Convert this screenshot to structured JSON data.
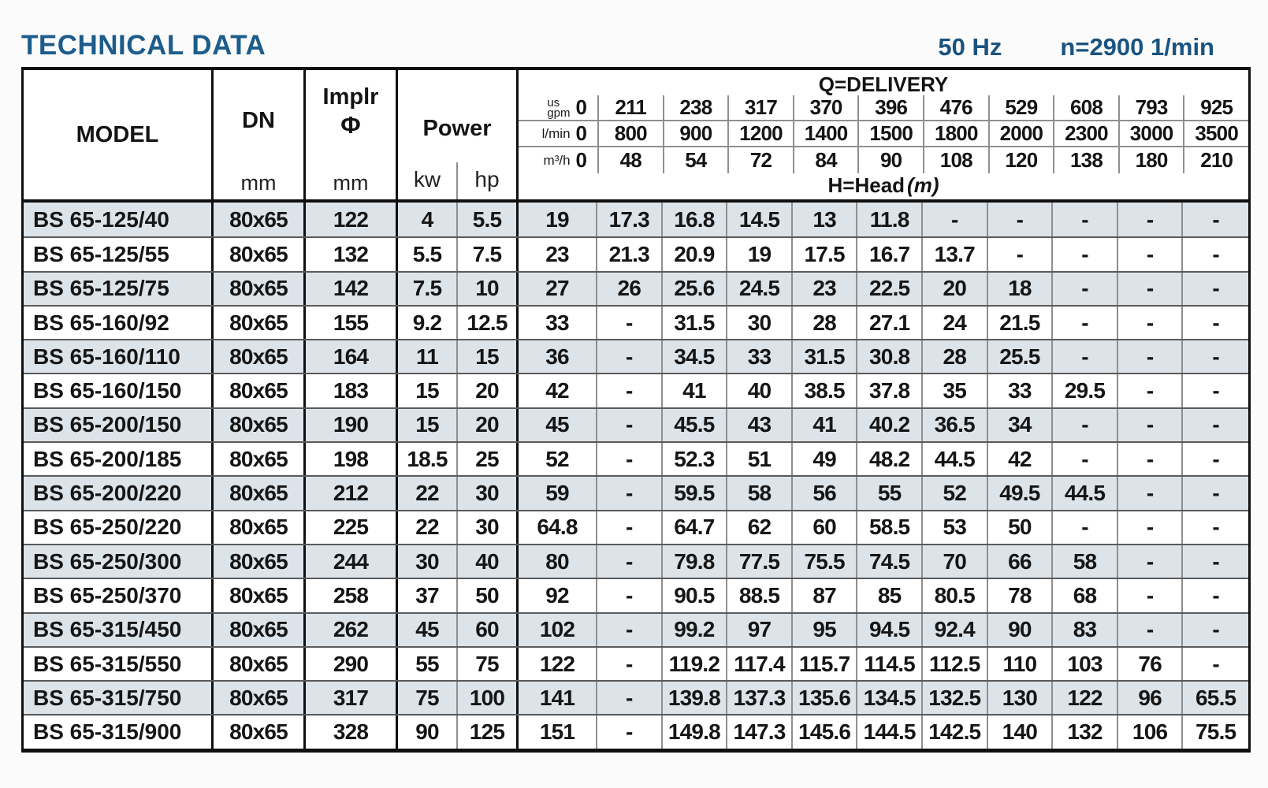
{
  "page": {
    "title": "TECHNICAL DATA",
    "frequency": "50 Hz",
    "speed": "n=2900 1/min"
  },
  "colors": {
    "title_blue": "#1d5c8b",
    "spec_blue": "#1a5380",
    "row_shade": "#dce3e9",
    "border_dark": "#101010",
    "line_gray": "#8f8f8f"
  },
  "table": {
    "headers": {
      "model": "MODEL",
      "dn": "DN",
      "dn_unit": "mm",
      "implr_line1": "Implr",
      "implr_symbol": "Φ",
      "implr_unit": "mm",
      "power": "Power",
      "power_kw": "kw",
      "power_hp": "hp",
      "delivery_title": "Q=DELIVERY",
      "head_title": "H=Head",
      "head_unit": "(m)",
      "unit_rows": [
        {
          "unit_top": "us",
          "unit": "gpm",
          "zero": "0",
          "values": [
            "211",
            "238",
            "317",
            "370",
            "396",
            "476",
            "529",
            "608",
            "793",
            "925"
          ]
        },
        {
          "unit": "l/min",
          "zero": "0",
          "values": [
            "800",
            "900",
            "1200",
            "1400",
            "1500",
            "1800",
            "2000",
            "2300",
            "3000",
            "3500"
          ]
        },
        {
          "unit": "m³/h",
          "zero": "0",
          "values": [
            "48",
            "54",
            "72",
            "84",
            "90",
            "108",
            "120",
            "138",
            "180",
            "210"
          ]
        }
      ]
    },
    "rows": [
      {
        "model": "BS 65-125/40",
        "dn": "80x65",
        "implr": "122",
        "kw": "4",
        "hp": "5.5",
        "head": [
          "19",
          "17.3",
          "16.8",
          "14.5",
          "13",
          "11.8",
          "-",
          "-",
          "-",
          "-",
          "-"
        ]
      },
      {
        "model": "BS 65-125/55",
        "dn": "80x65",
        "implr": "132",
        "kw": "5.5",
        "hp": "7.5",
        "head": [
          "23",
          "21.3",
          "20.9",
          "19",
          "17.5",
          "16.7",
          "13.7",
          "-",
          "-",
          "-",
          "-"
        ]
      },
      {
        "model": "BS 65-125/75",
        "dn": "80x65",
        "implr": "142",
        "kw": "7.5",
        "hp": "10",
        "head": [
          "27",
          "26",
          "25.6",
          "24.5",
          "23",
          "22.5",
          "20",
          "18",
          "-",
          "-",
          "-"
        ]
      },
      {
        "model": "BS 65-160/92",
        "dn": "80x65",
        "implr": "155",
        "kw": "9.2",
        "hp": "12.5",
        "head": [
          "33",
          "-",
          "31.5",
          "30",
          "28",
          "27.1",
          "24",
          "21.5",
          "-",
          "-",
          "-"
        ]
      },
      {
        "model": "BS 65-160/110",
        "dn": "80x65",
        "implr": "164",
        "kw": "11",
        "hp": "15",
        "head": [
          "36",
          "-",
          "34.5",
          "33",
          "31.5",
          "30.8",
          "28",
          "25.5",
          "-",
          "-",
          "-"
        ]
      },
      {
        "model": "BS 65-160/150",
        "dn": "80x65",
        "implr": "183",
        "kw": "15",
        "hp": "20",
        "head": [
          "42",
          "-",
          "41",
          "40",
          "38.5",
          "37.8",
          "35",
          "33",
          "29.5",
          "-",
          "-"
        ]
      },
      {
        "model": "BS 65-200/150",
        "dn": "80x65",
        "implr": "190",
        "kw": "15",
        "hp": "20",
        "head": [
          "45",
          "-",
          "45.5",
          "43",
          "41",
          "40.2",
          "36.5",
          "34",
          "-",
          "-",
          "-"
        ]
      },
      {
        "model": "BS 65-200/185",
        "dn": "80x65",
        "implr": "198",
        "kw": "18.5",
        "hp": "25",
        "head": [
          "52",
          "-",
          "52.3",
          "51",
          "49",
          "48.2",
          "44.5",
          "42",
          "-",
          "-",
          "-"
        ]
      },
      {
        "model": "BS 65-200/220",
        "dn": "80x65",
        "implr": "212",
        "kw": "22",
        "hp": "30",
        "head": [
          "59",
          "-",
          "59.5",
          "58",
          "56",
          "55",
          "52",
          "49.5",
          "44.5",
          "-",
          "-"
        ]
      },
      {
        "model": "BS 65-250/220",
        "dn": "80x65",
        "implr": "225",
        "kw": "22",
        "hp": "30",
        "head": [
          "64.8",
          "-",
          "64.7",
          "62",
          "60",
          "58.5",
          "53",
          "50",
          "-",
          "-",
          "-"
        ]
      },
      {
        "model": "BS 65-250/300",
        "dn": "80x65",
        "implr": "244",
        "kw": "30",
        "hp": "40",
        "head": [
          "80",
          "-",
          "79.8",
          "77.5",
          "75.5",
          "74.5",
          "70",
          "66",
          "58",
          "-",
          "-"
        ]
      },
      {
        "model": "BS 65-250/370",
        "dn": "80x65",
        "implr": "258",
        "kw": "37",
        "hp": "50",
        "head": [
          "92",
          "-",
          "90.5",
          "88.5",
          "87",
          "85",
          "80.5",
          "78",
          "68",
          "-",
          "-"
        ]
      },
      {
        "model": "BS 65-315/450",
        "dn": "80x65",
        "implr": "262",
        "kw": "45",
        "hp": "60",
        "head": [
          "102",
          "-",
          "99.2",
          "97",
          "95",
          "94.5",
          "92.4",
          "90",
          "83",
          "-",
          "-"
        ]
      },
      {
        "model": "BS 65-315/550",
        "dn": "80x65",
        "implr": "290",
        "kw": "55",
        "hp": "75",
        "head": [
          "122",
          "-",
          "119.2",
          "117.4",
          "115.7",
          "114.5",
          "112.5",
          "110",
          "103",
          "76",
          "-"
        ]
      },
      {
        "model": "BS 65-315/750",
        "dn": "80x65",
        "implr": "317",
        "kw": "75",
        "hp": "100",
        "head": [
          "141",
          "-",
          "139.8",
          "137.3",
          "135.6",
          "134.5",
          "132.5",
          "130",
          "122",
          "96",
          "65.5"
        ]
      },
      {
        "model": "BS 65-315/900",
        "dn": "80x65",
        "implr": "328",
        "kw": "90",
        "hp": "125",
        "head": [
          "151",
          "-",
          "149.8",
          "147.3",
          "145.6",
          "144.5",
          "142.5",
          "140",
          "132",
          "106",
          "75.5"
        ]
      }
    ]
  }
}
